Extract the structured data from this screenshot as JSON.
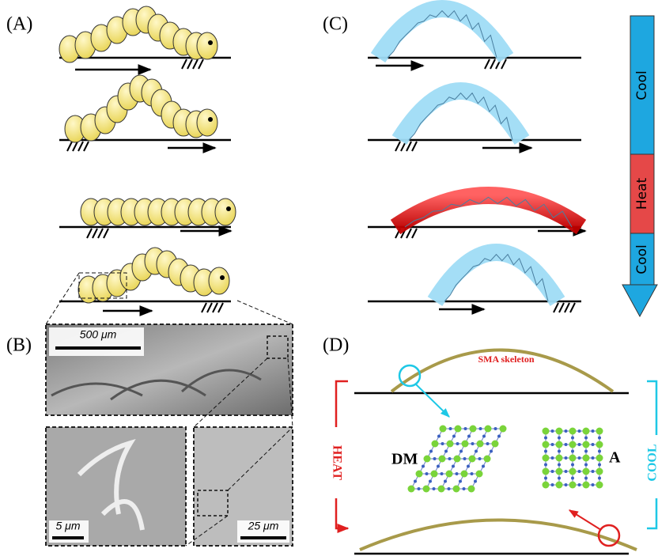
{
  "panels": {
    "A": {
      "label": "(A)"
    },
    "B": {
      "label": "(B)",
      "scale_bars": [
        "500 μm",
        "5 μm",
        "25 μm"
      ]
    },
    "C": {
      "label": "(C)",
      "phases": [
        "Cool",
        "Heat",
        "Cool"
      ]
    },
    "D": {
      "label": "(D)",
      "skeleton": "SMA skeleton",
      "phase_left": "DM",
      "phase_right": "A",
      "heat": "HEAT",
      "cool": "COOL"
    }
  }
}
